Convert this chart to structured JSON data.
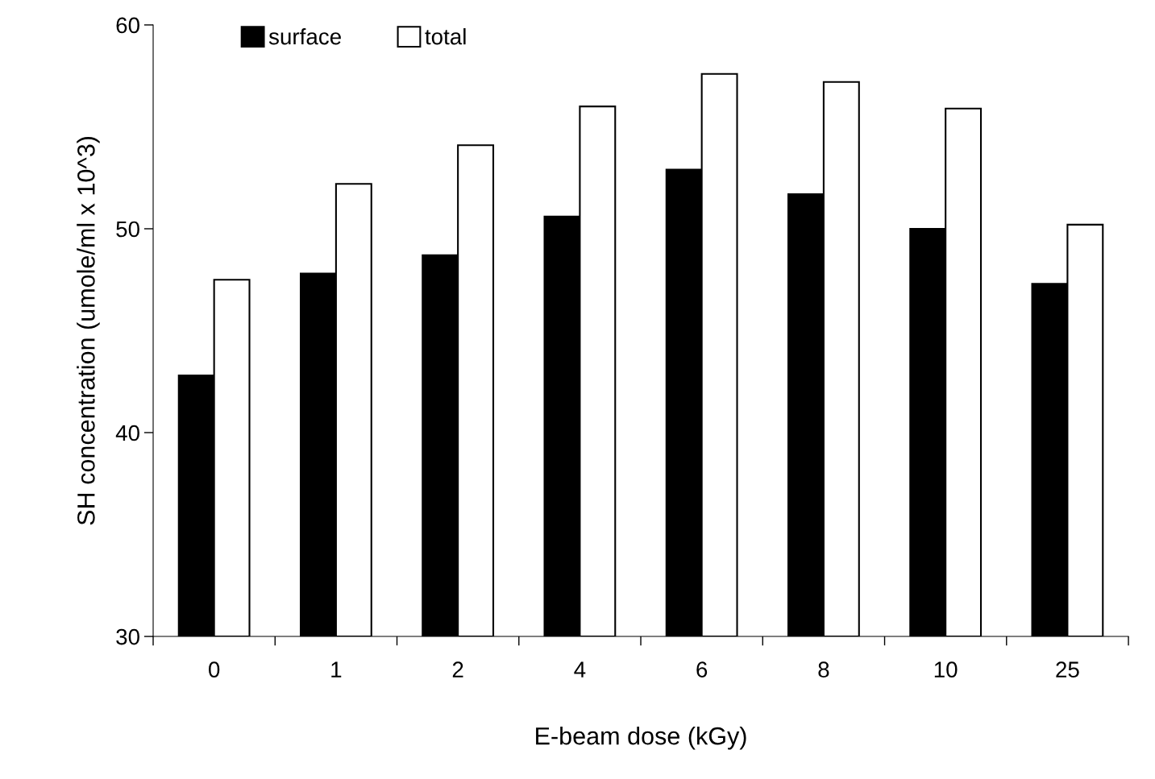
{
  "chart_data": {
    "type": "bar",
    "xlabel": "E-beam dose (kGy)",
    "ylabel": "SH concentration (umole/ml x 10^3)",
    "categories": [
      "0",
      "1",
      "2",
      "4",
      "6",
      "8",
      "10",
      "25"
    ],
    "series": [
      {
        "name": "surface",
        "color": "#000000",
        "values": [
          42.8,
          47.8,
          48.7,
          50.6,
          52.9,
          51.7,
          50.0,
          47.3
        ]
      },
      {
        "name": "total",
        "color": "#ffffff",
        "values": [
          47.5,
          52.2,
          54.1,
          56.0,
          57.6,
          57.2,
          55.9,
          50.2
        ]
      }
    ],
    "ylim": [
      30,
      60
    ],
    "yticks": [
      30,
      40,
      50,
      60
    ],
    "grid": false,
    "legend": "top left"
  }
}
